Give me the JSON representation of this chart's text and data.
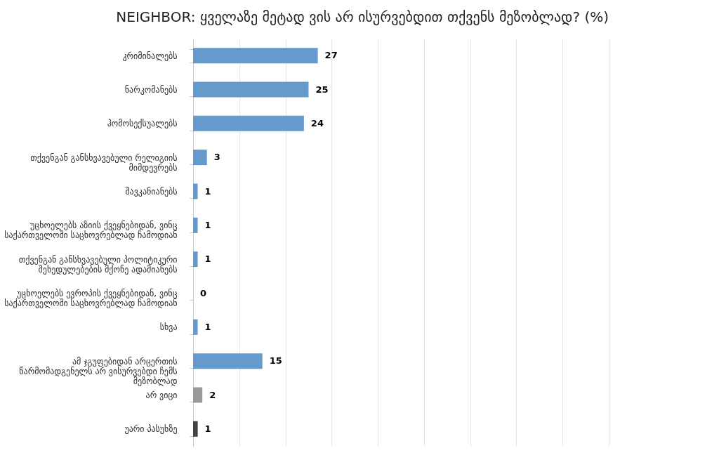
{
  "chart_data": {
    "type": "bar",
    "orientation": "horizontal",
    "title": "NEIGHBOR: ყველაზე მეტად ვის არ ისურვებდით თქვენს მეზობლად? (%)",
    "categories": [
      "კრიმინალებს",
      "ნარკომანებს",
      "ჰომოსექსუალებს",
      "თქვენგან განსხვავებული რელიგიის მიმდევრებს",
      "შავკანიანებს",
      "უცხოელებს აზიის ქვეყნებიდან, ვინც საქართველოში საცხოვრებლად ჩამოდიან",
      "თქვენგან განსხვავებული პოლიტიკური შეხედულებების მქონე ადამიანებს",
      "უცხოელებს ევროპის ქვეყნებიდან, ვინც საქართველოში საცხოვრებლად ჩამოდიან",
      "სხვა",
      "ამ ჯგუფებიდან არცერთის წარმომადგენელს არ ვისურვებდი ჩემს მეზობლად",
      "არ ვიცი",
      "უარი პასუხზე"
    ],
    "values": [
      27,
      25,
      24,
      3,
      1,
      1,
      1,
      0,
      1,
      15,
      2,
      1
    ],
    "colors": [
      "#6699cc",
      "#6699cc",
      "#6699cc",
      "#6699cc",
      "#6699cc",
      "#6699cc",
      "#6699cc",
      "#6699cc",
      "#6699cc",
      "#6699cc",
      "#999999",
      "#404040"
    ],
    "xlim": [
      0,
      90
    ],
    "xticks": [
      {
        "value": 0,
        "label": null
      },
      {
        "value": 10,
        "label": null
      },
      {
        "value": 20,
        "label": null
      },
      {
        "value": 30,
        "label": null
      },
      {
        "value": 40,
        "label": null
      },
      {
        "value": 50,
        "label": null
      },
      {
        "value": 60,
        "label": null
      },
      {
        "value": 70,
        "label": null
      },
      {
        "value": 80,
        "label": null
      },
      {
        "value": 90,
        "label": null
      }
    ],
    "tick_labels": "y",
    "grid": "x",
    "data_labels": true
  }
}
